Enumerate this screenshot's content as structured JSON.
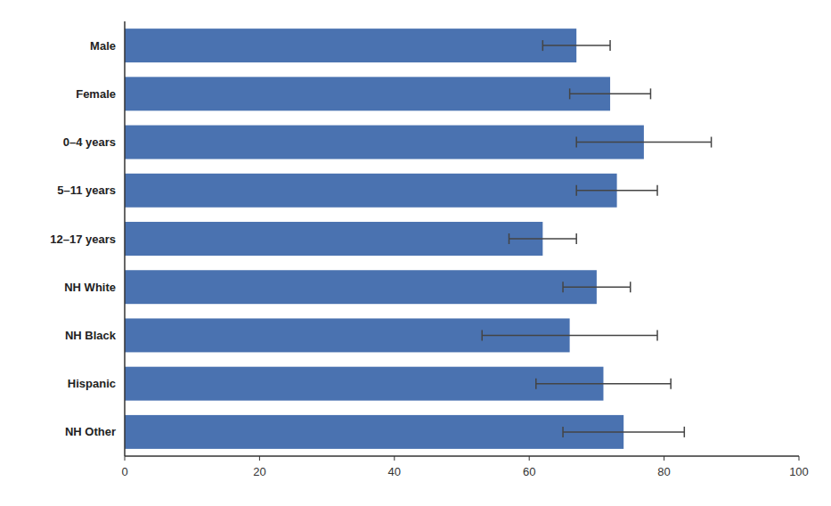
{
  "chart_data": {
    "type": "bar",
    "orientation": "horizontal",
    "categories": [
      "Male",
      "Female",
      "0–4 years",
      "5–11 years",
      "12–17 years",
      "NH White",
      "NH Black",
      "Hispanic",
      "NH Other"
    ],
    "values": [
      67,
      72,
      77,
      73,
      62,
      70,
      66,
      71,
      74
    ],
    "ci_lower": [
      62,
      66,
      67,
      67,
      57,
      65,
      53,
      61,
      65
    ],
    "ci_upper": [
      72,
      78,
      87,
      79,
      67,
      75,
      79,
      81,
      83
    ],
    "color": "#4a72b0",
    "xlim": [
      0,
      100
    ],
    "xticks": [
      0,
      20,
      40,
      60,
      80,
      100
    ],
    "grid": false
  }
}
